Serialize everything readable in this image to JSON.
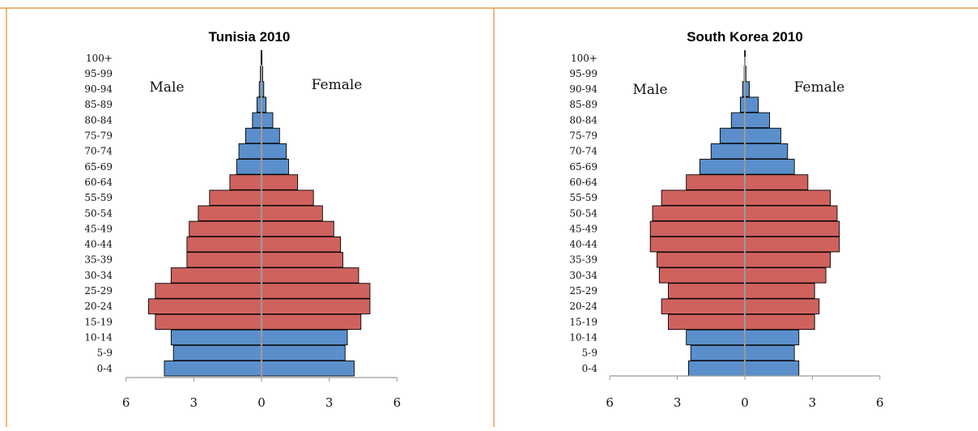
{
  "colors": {
    "border": "#E8A04C",
    "male_female_young_old": "#5B8FCB",
    "working_age": "#D0625E",
    "outline": "#000000",
    "axis": "#999999"
  },
  "chart_data": [
    {
      "type": "bar",
      "title": "Tunisia 2010",
      "xlabel": "",
      "ylabel": "",
      "left_label": "Male",
      "right_label": "Female",
      "xlim": [
        -6,
        6
      ],
      "xticks": [
        "6",
        "3",
        "0",
        "3",
        "6"
      ],
      "categories": [
        "0-4",
        "5-9",
        "10-14",
        "15-19",
        "20-24",
        "25-29",
        "30-34",
        "35-39",
        "40-44",
        "45-49",
        "50-54",
        "55-59",
        "60-64",
        "65-69",
        "70-74",
        "75-79",
        "80-84",
        "85-89",
        "90-94",
        "95-99",
        "100+"
      ],
      "series": [
        {
          "name": "Male",
          "values": [
            4.3,
            3.9,
            4.0,
            4.7,
            5.0,
            4.7,
            4.0,
            3.3,
            3.3,
            3.2,
            2.8,
            2.3,
            1.4,
            1.1,
            1.0,
            0.7,
            0.4,
            0.2,
            0.1,
            0.05,
            0.02
          ]
        },
        {
          "name": "Female",
          "values": [
            4.1,
            3.7,
            3.8,
            4.4,
            4.8,
            4.8,
            4.3,
            3.6,
            3.5,
            3.2,
            2.7,
            2.3,
            1.6,
            1.2,
            1.1,
            0.8,
            0.5,
            0.2,
            0.1,
            0.05,
            0.02
          ]
        }
      ]
    },
    {
      "type": "bar",
      "title": "South Korea 2010",
      "xlabel": "",
      "ylabel": "",
      "left_label": "Male",
      "right_label": "Female",
      "xlim": [
        -6,
        6
      ],
      "xticks": [
        "6",
        "3",
        "0",
        "3",
        "6"
      ],
      "categories": [
        "0-4",
        "5-9",
        "10-14",
        "15-19",
        "20-24",
        "25-29",
        "30-34",
        "35-39",
        "40-44",
        "45-49",
        "50-54",
        "55-59",
        "60-64",
        "65-69",
        "70-74",
        "75-79",
        "80-84",
        "85-89",
        "90-94",
        "95-99",
        "100+"
      ],
      "series": [
        {
          "name": "Male",
          "values": [
            2.5,
            2.4,
            2.6,
            3.4,
            3.7,
            3.4,
            3.8,
            3.9,
            4.2,
            4.2,
            4.1,
            3.7,
            2.6,
            2.0,
            1.5,
            1.1,
            0.6,
            0.2,
            0.1,
            0.03,
            0.01
          ]
        },
        {
          "name": "Female",
          "values": [
            2.4,
            2.2,
            2.4,
            3.1,
            3.3,
            3.1,
            3.6,
            3.8,
            4.2,
            4.2,
            4.1,
            3.8,
            2.8,
            2.2,
            1.9,
            1.6,
            1.1,
            0.6,
            0.2,
            0.05,
            0.02
          ]
        }
      ]
    }
  ]
}
